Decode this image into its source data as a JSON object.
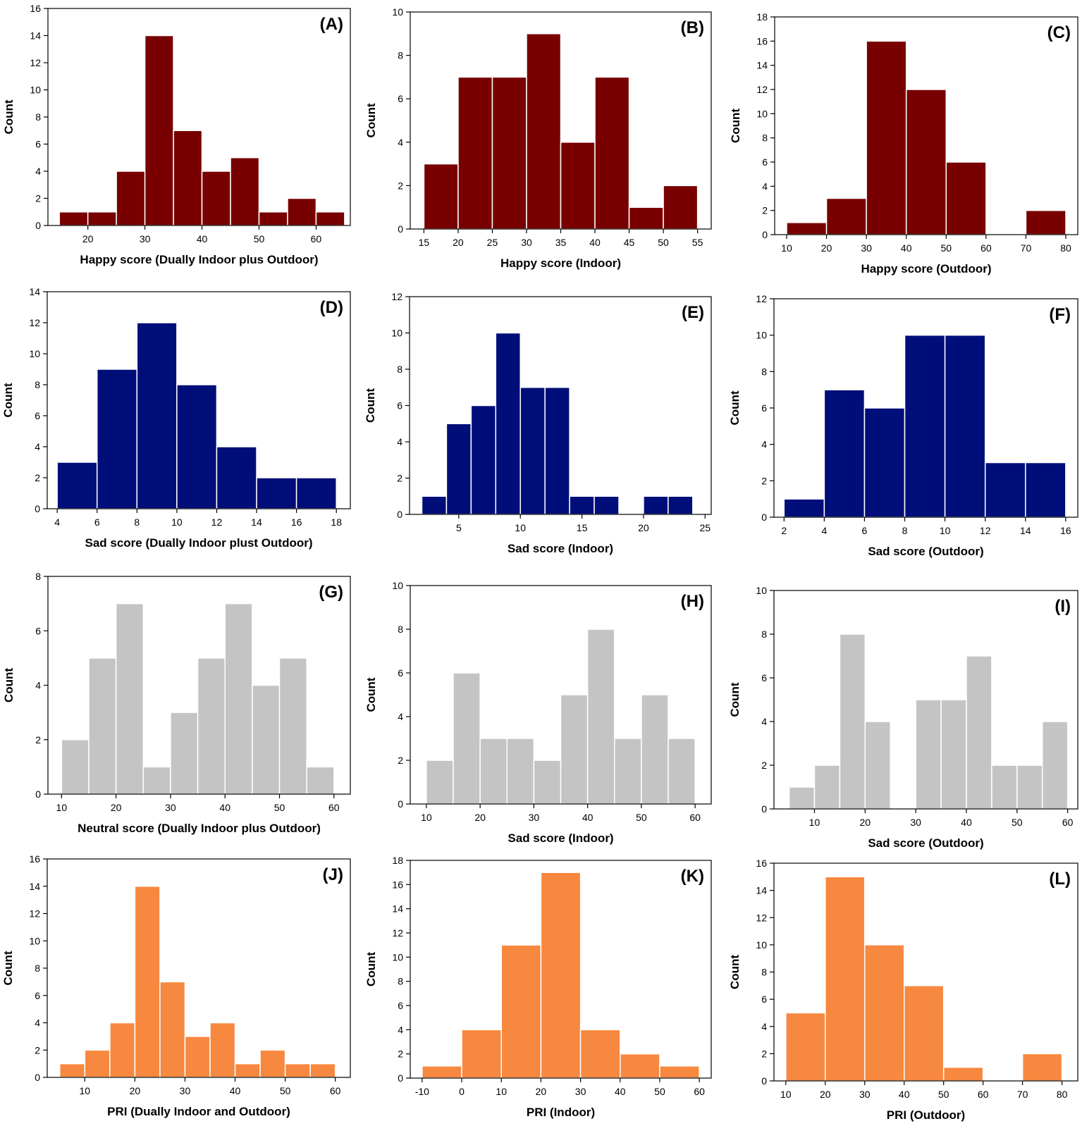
{
  "colors": {
    "happy": "#780000",
    "sad": "#000e7a",
    "neutral": "#c4c4c4",
    "pri": "#f7883f",
    "axis": "#000000",
    "bar_edge": "#ffffff"
  },
  "chart_data": [
    {
      "id": "A",
      "label": "(A)",
      "type": "bar",
      "color_key": "happy",
      "xlabel": "Happy score (Dually Indoor plus Outdoor)",
      "ylabel": "Count",
      "xlim": [
        13,
        66
      ],
      "ylim": [
        0,
        16
      ],
      "xticks": [
        20,
        30,
        40,
        50,
        60
      ],
      "yticks": [
        0,
        2,
        4,
        6,
        8,
        10,
        12,
        14,
        16
      ],
      "bin_edges": [
        15,
        20,
        25,
        30,
        35,
        40,
        45,
        50,
        55,
        60,
        65
      ],
      "counts": [
        1,
        1,
        4,
        14,
        7,
        4,
        5,
        1,
        2,
        1
      ]
    },
    {
      "id": "B",
      "label": "(B)",
      "type": "bar",
      "color_key": "happy",
      "xlabel": "Happy score (Indoor)",
      "ylabel": "Count",
      "xlim": [
        13,
        57
      ],
      "ylim": [
        0,
        10
      ],
      "xticks": [
        15,
        20,
        25,
        30,
        35,
        40,
        45,
        50,
        55
      ],
      "yticks": [
        0,
        2,
        4,
        6,
        8,
        10
      ],
      "bin_edges": [
        15,
        20,
        25,
        30,
        35,
        40,
        45,
        50,
        55
      ],
      "counts": [
        3,
        7,
        7,
        9,
        4,
        7,
        1,
        2
      ]
    },
    {
      "id": "C",
      "label": "(C)",
      "type": "bar",
      "color_key": "happy",
      "xlabel": "Happy score (Outdoor)",
      "ylabel": "Count",
      "xlim": [
        7,
        83
      ],
      "ylim": [
        0,
        18
      ],
      "xticks": [
        10,
        20,
        30,
        40,
        50,
        60,
        70,
        80
      ],
      "yticks": [
        0,
        2,
        4,
        6,
        8,
        10,
        12,
        14,
        16,
        18
      ],
      "bin_edges": [
        10,
        20,
        30,
        40,
        50,
        60,
        70,
        80
      ],
      "counts": [
        1,
        3,
        16,
        12,
        6,
        0,
        2
      ]
    },
    {
      "id": "D",
      "label": "(D)",
      "type": "bar",
      "color_key": "sad",
      "xlabel": "Sad score (Dually Indoor plust Outdoor)",
      "ylabel": "Count",
      "xlim": [
        3.5,
        18.7
      ],
      "ylim": [
        0,
        14
      ],
      "xticks": [
        4,
        6,
        8,
        10,
        12,
        14,
        16,
        18
      ],
      "yticks": [
        0,
        2,
        4,
        6,
        8,
        10,
        12,
        14
      ],
      "bin_edges": [
        4,
        6,
        8,
        10,
        12,
        14,
        16,
        18
      ],
      "counts": [
        3,
        9,
        12,
        8,
        4,
        2,
        2
      ]
    },
    {
      "id": "E",
      "label": "(E)",
      "type": "bar",
      "color_key": "sad",
      "xlabel": "Sad score (Indoor)",
      "ylabel": "Count",
      "xlim": [
        1,
        25.5
      ],
      "ylim": [
        0,
        12
      ],
      "xticks": [
        5,
        10,
        15,
        20,
        25
      ],
      "yticks": [
        0,
        2,
        4,
        6,
        8,
        10,
        12
      ],
      "bin_edges": [
        2,
        4,
        6,
        8,
        10,
        12,
        14,
        16,
        18,
        20,
        22,
        24
      ],
      "counts": [
        1,
        5,
        6,
        10,
        7,
        7,
        1,
        1,
        0,
        1,
        1
      ]
    },
    {
      "id": "F",
      "label": "(F)",
      "type": "bar",
      "color_key": "sad",
      "xlabel": "Sad score (Outdoor)",
      "ylabel": "Count",
      "xlim": [
        1.5,
        16.6
      ],
      "ylim": [
        0,
        12
      ],
      "xticks": [
        2,
        4,
        6,
        8,
        10,
        12,
        14,
        16
      ],
      "yticks": [
        0,
        2,
        4,
        6,
        8,
        10,
        12
      ],
      "bin_edges": [
        2,
        4,
        6,
        8,
        10,
        12,
        14,
        16
      ],
      "counts": [
        1,
        7,
        6,
        10,
        10,
        3,
        3
      ]
    },
    {
      "id": "G",
      "label": "(G)",
      "type": "bar",
      "color_key": "neutral",
      "xlabel": "Neutral score (Dually Indoor plus Outdoor)",
      "ylabel": "Count",
      "xlim": [
        7.5,
        63
      ],
      "ylim": [
        0,
        8
      ],
      "xticks": [
        10,
        20,
        30,
        40,
        50,
        60
      ],
      "yticks": [
        0,
        2,
        4,
        6,
        8
      ],
      "bin_edges": [
        10,
        15,
        20,
        25,
        30,
        35,
        40,
        45,
        50,
        55,
        60
      ],
      "counts": [
        2,
        5,
        7,
        1,
        3,
        5,
        7,
        4,
        5,
        1
      ]
    },
    {
      "id": "H",
      "label": "(H)",
      "type": "bar",
      "color_key": "neutral",
      "xlabel": "Sad score (Indoor)",
      "ylabel": "Count",
      "xlim": [
        7,
        63
      ],
      "ylim": [
        0,
        10
      ],
      "xticks": [
        10,
        20,
        30,
        40,
        50,
        60
      ],
      "yticks": [
        0,
        2,
        4,
        6,
        8,
        10
      ],
      "bin_edges": [
        10,
        15,
        20,
        25,
        30,
        35,
        40,
        45,
        50,
        55,
        60
      ],
      "counts": [
        2,
        6,
        3,
        3,
        2,
        5,
        8,
        3,
        5,
        3
      ]
    },
    {
      "id": "I",
      "label": "(I)",
      "type": "bar",
      "color_key": "neutral",
      "xlabel": "Sad score (Outdoor)",
      "ylabel": "Count",
      "xlim": [
        2,
        62
      ],
      "ylim": [
        0,
        10
      ],
      "xticks": [
        10,
        20,
        30,
        40,
        50,
        60
      ],
      "yticks": [
        0,
        2,
        4,
        6,
        8,
        10
      ],
      "bin_edges": [
        5,
        10,
        15,
        20,
        25,
        30,
        35,
        40,
        45,
        50,
        55,
        60
      ],
      "counts": [
        1,
        2,
        8,
        4,
        0,
        5,
        5,
        7,
        2,
        2,
        4
      ]
    },
    {
      "id": "J",
      "label": "(J)",
      "type": "bar",
      "color_key": "pri",
      "xlabel": "PRI (Dually Indoor and Outdoor)",
      "ylabel": "Count",
      "xlim": [
        2.5,
        63
      ],
      "ylim": [
        0,
        16
      ],
      "xticks": [
        10,
        20,
        30,
        40,
        50,
        60
      ],
      "yticks": [
        0,
        2,
        4,
        6,
        8,
        10,
        12,
        14,
        16
      ],
      "bin_edges": [
        5,
        10,
        15,
        20,
        25,
        30,
        35,
        40,
        45,
        50,
        55,
        60
      ],
      "counts": [
        1,
        2,
        4,
        14,
        7,
        3,
        4,
        1,
        2,
        1,
        1
      ]
    },
    {
      "id": "K",
      "label": "(K)",
      "type": "bar",
      "color_key": "pri",
      "xlabel": "PRI (Indoor)",
      "ylabel": "Count",
      "xlim": [
        -13,
        63
      ],
      "ylim": [
        0,
        18
      ],
      "xticks": [
        -10,
        0,
        10,
        20,
        30,
        40,
        50,
        60
      ],
      "yticks": [
        0,
        2,
        4,
        6,
        8,
        10,
        12,
        14,
        16,
        18
      ],
      "bin_edges": [
        -10,
        0,
        10,
        20,
        30,
        40,
        50,
        60
      ],
      "counts": [
        1,
        4,
        11,
        17,
        4,
        2,
        1
      ]
    },
    {
      "id": "L",
      "label": "(L)",
      "type": "bar",
      "color_key": "pri",
      "xlabel": "PRI (Outdoor)",
      "ylabel": "Count",
      "xlim": [
        7,
        84
      ],
      "ylim": [
        0,
        16
      ],
      "xticks": [
        10,
        20,
        30,
        40,
        50,
        60,
        70,
        80
      ],
      "yticks": [
        0,
        2,
        4,
        6,
        8,
        10,
        12,
        14,
        16
      ],
      "bin_edges": [
        10,
        20,
        30,
        40,
        50,
        60,
        70,
        80
      ],
      "counts": [
        5,
        15,
        10,
        7,
        1,
        0,
        2
      ]
    }
  ]
}
